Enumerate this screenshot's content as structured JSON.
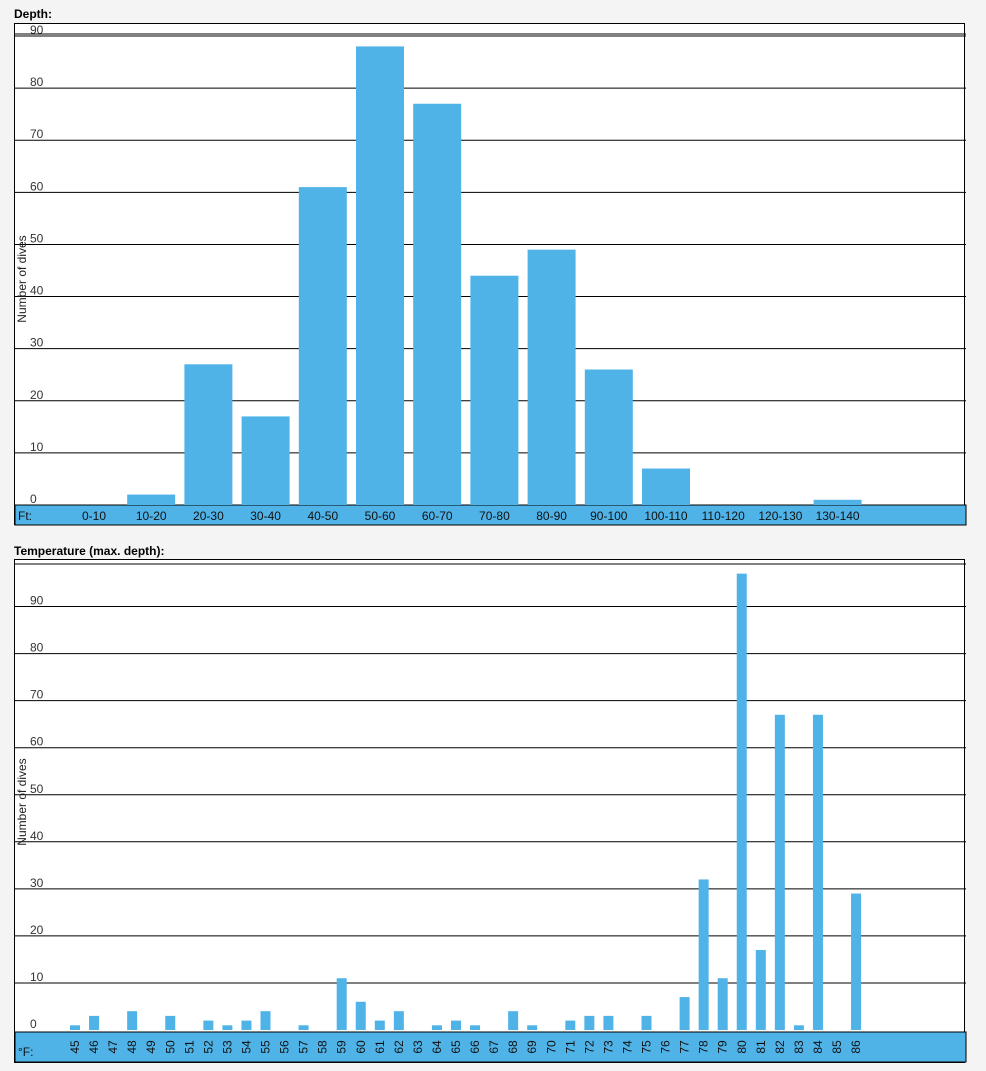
{
  "chart_data": [
    {
      "type": "bar",
      "title": "Depth:",
      "ylabel": "Number of dives",
      "x_unit_label": "Ft:",
      "ylim": [
        0,
        90
      ],
      "yticks": [
        0,
        10,
        20,
        30,
        40,
        50,
        60,
        70,
        80,
        90
      ],
      "categories": [
        "0-10",
        "10-20",
        "20-30",
        "30-40",
        "40-50",
        "50-60",
        "60-70",
        "70-80",
        "80-90",
        "90-100",
        "100-110",
        "110-120",
        "120-130",
        "130-140"
      ],
      "values": [
        0,
        2,
        27,
        17,
        61,
        88,
        77,
        44,
        49,
        26,
        7,
        0,
        0,
        1
      ],
      "bar_color": "#4fb3e8",
      "grid": true
    },
    {
      "type": "bar",
      "title": "Temperature (max. depth):",
      "ylabel": "Number of dives",
      "x_unit_label": "°F:",
      "ylim": [
        0,
        100
      ],
      "yticks": [
        0,
        10,
        20,
        30,
        40,
        50,
        60,
        70,
        80,
        90
      ],
      "categories": [
        "45",
        "46",
        "47",
        "48",
        "49",
        "50",
        "51",
        "52",
        "53",
        "54",
        "55",
        "56",
        "57",
        "58",
        "59",
        "60",
        "61",
        "62",
        "63",
        "64",
        "65",
        "66",
        "67",
        "68",
        "69",
        "70",
        "71",
        "72",
        "73",
        "74",
        "75",
        "76",
        "77",
        "78",
        "79",
        "80",
        "81",
        "82",
        "83",
        "84",
        "85",
        "86"
      ],
      "values": [
        1,
        3,
        0,
        4,
        0,
        3,
        0,
        2,
        1,
        2,
        4,
        0,
        1,
        0,
        11,
        6,
        2,
        4,
        0,
        1,
        2,
        1,
        0,
        4,
        1,
        0,
        2,
        3,
        3,
        0,
        3,
        0,
        7,
        32,
        11,
        97,
        17,
        67,
        1,
        67,
        0,
        29
      ],
      "bar_color": "#4fb3e8",
      "grid": true
    }
  ]
}
